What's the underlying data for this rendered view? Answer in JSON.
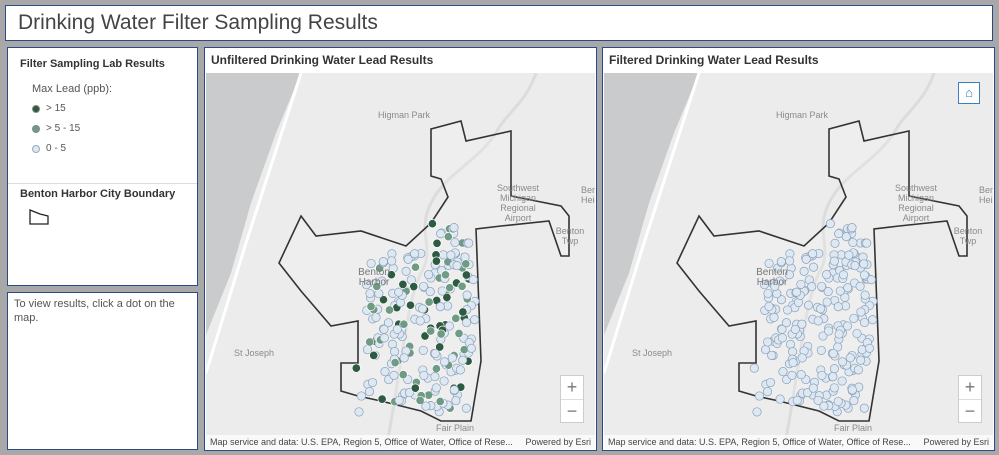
{
  "title": "Drinking Water Filter Sampling Results",
  "legend": {
    "heading": "Filter Sampling Lab Results",
    "subheading": "Max Lead (ppb):",
    "items": [
      {
        "label": "> 15",
        "color": "#2d5a40"
      },
      {
        "label": "> 5 - 15",
        "color": "#6f9a84"
      },
      {
        "label": "0 - 5",
        "color": "#dde8f3"
      }
    ],
    "boundary_heading": "Benton Harbor City Boundary"
  },
  "info": {
    "text": "To view results, click a dot on the map."
  },
  "maps": [
    {
      "title": "Unfiltered Drinking Water Lead Results",
      "mode": "mixed"
    },
    {
      "title": "Filtered Drinking Water Lead Results",
      "mode": "filtered",
      "home_icon": "home-icon"
    }
  ],
  "map_labels": {
    "higman": "Higman Park",
    "airport": "Southwest Michigan Regional Airport",
    "benton_harbor": "Benton Harbor",
    "st_joseph": "St Joseph",
    "fair_plain": "Fair Plain",
    "benton_heights": "Benton Heights",
    "benton_twp": "Benton Twp"
  },
  "attribution": "Map service and data: U.S. EPA, Region 5, Office of Water, Office of Rese...",
  "powered": "Powered by Esri",
  "zoom": {
    "in": "+",
    "out": "−"
  }
}
